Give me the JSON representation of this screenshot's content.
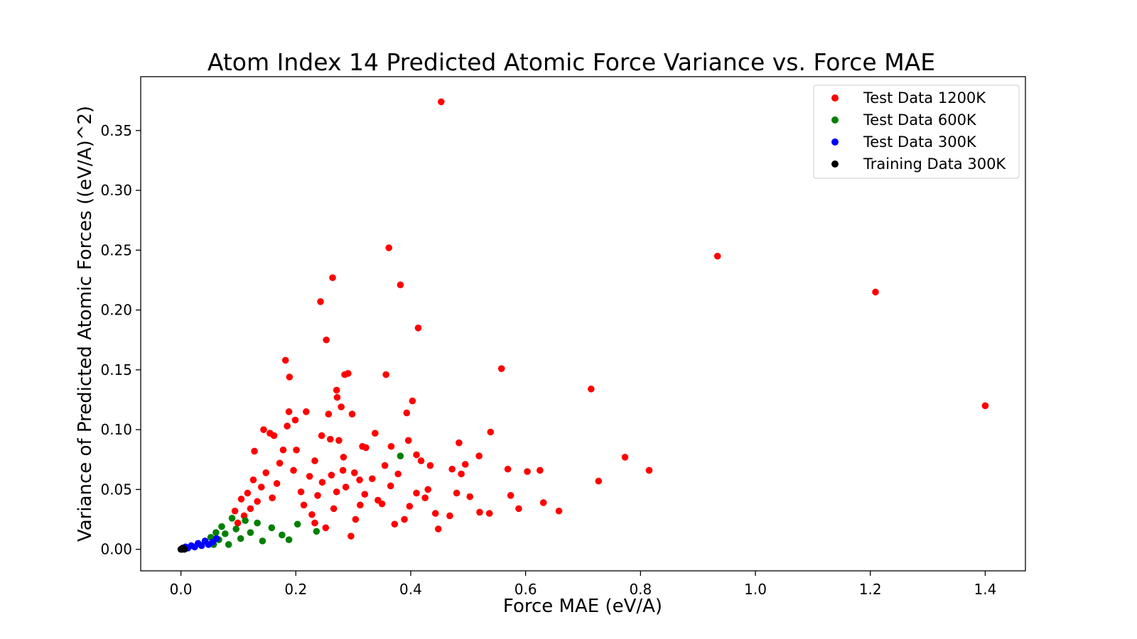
{
  "chart_data": {
    "type": "scatter",
    "title": "Atom Index 14 Predicted Atomic Force Variance vs. Force MAE",
    "xlabel": "Force MAE (eV/A)",
    "ylabel": "Variance of Predicted Atomic Forces ((eV/A)^2)",
    "xlim": [
      -0.07,
      1.47
    ],
    "ylim": [
      -0.018,
      0.395
    ],
    "xticks": [
      0.0,
      0.2,
      0.4,
      0.6,
      0.8,
      1.0,
      1.2,
      1.4
    ],
    "xtick_labels": [
      "0.0",
      "0.2",
      "0.4",
      "0.6",
      "0.8",
      "1.0",
      "1.2",
      "1.4"
    ],
    "yticks": [
      0.0,
      0.05,
      0.1,
      0.15,
      0.2,
      0.25,
      0.3,
      0.35
    ],
    "ytick_labels": [
      "0.00",
      "0.05",
      "0.10",
      "0.15",
      "0.20",
      "0.25",
      "0.30",
      "0.35"
    ],
    "grid": false,
    "legend_position": "top-right",
    "series": [
      {
        "name": "Test Data 1200K",
        "color": "#ff0000",
        "points": [
          [
            0.453,
            0.374
          ],
          [
            0.362,
            0.252
          ],
          [
            0.934,
            0.245
          ],
          [
            0.382,
            0.221
          ],
          [
            1.209,
            0.215
          ],
          [
            0.264,
            0.227
          ],
          [
            0.243,
            0.207
          ],
          [
            0.413,
            0.185
          ],
          [
            0.253,
            0.175
          ],
          [
            0.182,
            0.158
          ],
          [
            0.558,
            0.151
          ],
          [
            0.189,
            0.144
          ],
          [
            0.291,
            0.147
          ],
          [
            0.285,
            0.146
          ],
          [
            0.357,
            0.146
          ],
          [
            0.714,
            0.134
          ],
          [
            0.271,
            0.133
          ],
          [
            0.272,
            0.127
          ],
          [
            0.403,
            0.124
          ],
          [
            1.4,
            0.12
          ],
          [
            0.279,
            0.119
          ],
          [
            0.188,
            0.115
          ],
          [
            0.218,
            0.115
          ],
          [
            0.298,
            0.113
          ],
          [
            0.257,
            0.113
          ],
          [
            0.393,
            0.114
          ],
          [
            0.199,
            0.108
          ],
          [
            0.185,
            0.103
          ],
          [
            0.539,
            0.098
          ],
          [
            0.338,
            0.097
          ],
          [
            0.144,
            0.1
          ],
          [
            0.155,
            0.097
          ],
          [
            0.162,
            0.095
          ],
          [
            0.245,
            0.095
          ],
          [
            0.26,
            0.092
          ],
          [
            0.275,
            0.091
          ],
          [
            0.396,
            0.091
          ],
          [
            0.484,
            0.089
          ],
          [
            0.316,
            0.086
          ],
          [
            0.322,
            0.085
          ],
          [
            0.366,
            0.086
          ],
          [
            0.128,
            0.082
          ],
          [
            0.178,
            0.083
          ],
          [
            0.201,
            0.083
          ],
          [
            0.773,
            0.077
          ],
          [
            0.519,
            0.078
          ],
          [
            0.41,
            0.079
          ],
          [
            0.283,
            0.077
          ],
          [
            0.233,
            0.074
          ],
          [
            0.418,
            0.074
          ],
          [
            0.495,
            0.071
          ],
          [
            0.569,
            0.067
          ],
          [
            0.625,
            0.066
          ],
          [
            0.603,
            0.065
          ],
          [
            0.815,
            0.066
          ],
          [
            0.434,
            0.07
          ],
          [
            0.472,
            0.067
          ],
          [
            0.488,
            0.063
          ],
          [
            0.727,
            0.057
          ],
          [
            0.574,
            0.045
          ],
          [
            0.503,
            0.044
          ],
          [
            0.48,
            0.047
          ],
          [
            0.631,
            0.039
          ],
          [
            0.588,
            0.034
          ],
          [
            0.658,
            0.032
          ],
          [
            0.52,
            0.031
          ],
          [
            0.537,
            0.03
          ],
          [
            0.468,
            0.028
          ],
          [
            0.448,
            0.017
          ],
          [
            0.443,
            0.03
          ],
          [
            0.43,
            0.05
          ],
          [
            0.41,
            0.047
          ],
          [
            0.398,
            0.036
          ],
          [
            0.389,
            0.025
          ],
          [
            0.372,
            0.021
          ],
          [
            0.343,
            0.041
          ],
          [
            0.333,
            0.059
          ],
          [
            0.312,
            0.037
          ],
          [
            0.304,
            0.025
          ],
          [
            0.296,
            0.011
          ],
          [
            0.287,
            0.052
          ],
          [
            0.266,
            0.034
          ],
          [
            0.252,
            0.018
          ],
          [
            0.233,
            0.022
          ],
          [
            0.224,
            0.061
          ],
          [
            0.209,
            0.048
          ],
          [
            0.196,
            0.066
          ],
          [
            0.172,
            0.072
          ],
          [
            0.167,
            0.055
          ],
          [
            0.159,
            0.043
          ],
          [
            0.148,
            0.064
          ],
          [
            0.14,
            0.052
          ],
          [
            0.133,
            0.04
          ],
          [
            0.126,
            0.058
          ],
          [
            0.121,
            0.034
          ],
          [
            0.116,
            0.047
          ],
          [
            0.11,
            0.028
          ],
          [
            0.105,
            0.042
          ],
          [
            0.099,
            0.022
          ],
          [
            0.094,
            0.032
          ],
          [
            0.32,
            0.046
          ],
          [
            0.35,
            0.038
          ],
          [
            0.365,
            0.053
          ],
          [
            0.425,
            0.043
          ],
          [
            0.378,
            0.063
          ],
          [
            0.355,
            0.07
          ],
          [
            0.302,
            0.064
          ],
          [
            0.282,
            0.066
          ],
          [
            0.311,
            0.058
          ],
          [
            0.262,
            0.062
          ],
          [
            0.238,
            0.045
          ],
          [
            0.214,
            0.037
          ],
          [
            0.228,
            0.029
          ],
          [
            0.246,
            0.056
          ],
          [
            0.271,
            0.048
          ]
        ]
      },
      {
        "name": "Test Data 600K",
        "color": "#008000",
        "points": [
          [
            0.382,
            0.078
          ],
          [
            0.188,
            0.008
          ],
          [
            0.236,
            0.015
          ],
          [
            0.203,
            0.021
          ],
          [
            0.176,
            0.012
          ],
          [
            0.158,
            0.018
          ],
          [
            0.142,
            0.007
          ],
          [
            0.133,
            0.022
          ],
          [
            0.121,
            0.014
          ],
          [
            0.112,
            0.024
          ],
          [
            0.104,
            0.009
          ],
          [
            0.096,
            0.017
          ],
          [
            0.089,
            0.026
          ],
          [
            0.083,
            0.004
          ],
          [
            0.077,
            0.013
          ],
          [
            0.071,
            0.019
          ],
          [
            0.066,
            0.008
          ],
          [
            0.061,
            0.014
          ],
          [
            0.057,
            0.004
          ],
          [
            0.052,
            0.01
          ]
        ]
      },
      {
        "name": "Test Data 300K",
        "color": "#0000ff",
        "points": [
          [
            0.062,
            0.009
          ],
          [
            0.055,
            0.006
          ],
          [
            0.048,
            0.004
          ],
          [
            0.042,
            0.007
          ],
          [
            0.036,
            0.003
          ],
          [
            0.03,
            0.005
          ],
          [
            0.024,
            0.002
          ],
          [
            0.018,
            0.003
          ],
          [
            0.012,
            0.001
          ],
          [
            0.008,
            0.002
          ]
        ]
      },
      {
        "name": "Training Data 300K",
        "color": "#000000",
        "points": [
          [
            0.0,
            0.0
          ],
          [
            0.002,
            0.0
          ],
          [
            0.004,
            0.001
          ],
          [
            0.006,
            0.0
          ],
          [
            0.003,
            0.001
          ]
        ]
      }
    ]
  }
}
